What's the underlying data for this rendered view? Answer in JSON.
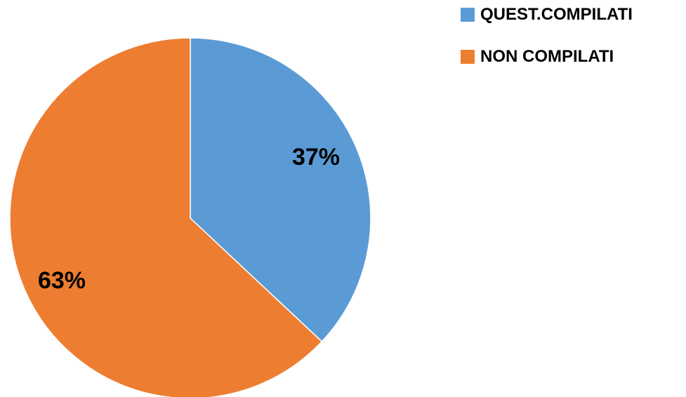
{
  "chart_data": {
    "type": "pie",
    "categories": [
      "QUEST.COMPILATI",
      "NON COMPILATI"
    ],
    "values": [
      37,
      63
    ],
    "data_labels": [
      "37%",
      "63%"
    ],
    "colors": [
      "#5b9bd5",
      "#ed7d31"
    ],
    "legend_position": "top-right",
    "start_angle": "12 o'clock",
    "direction": "clockwise"
  }
}
